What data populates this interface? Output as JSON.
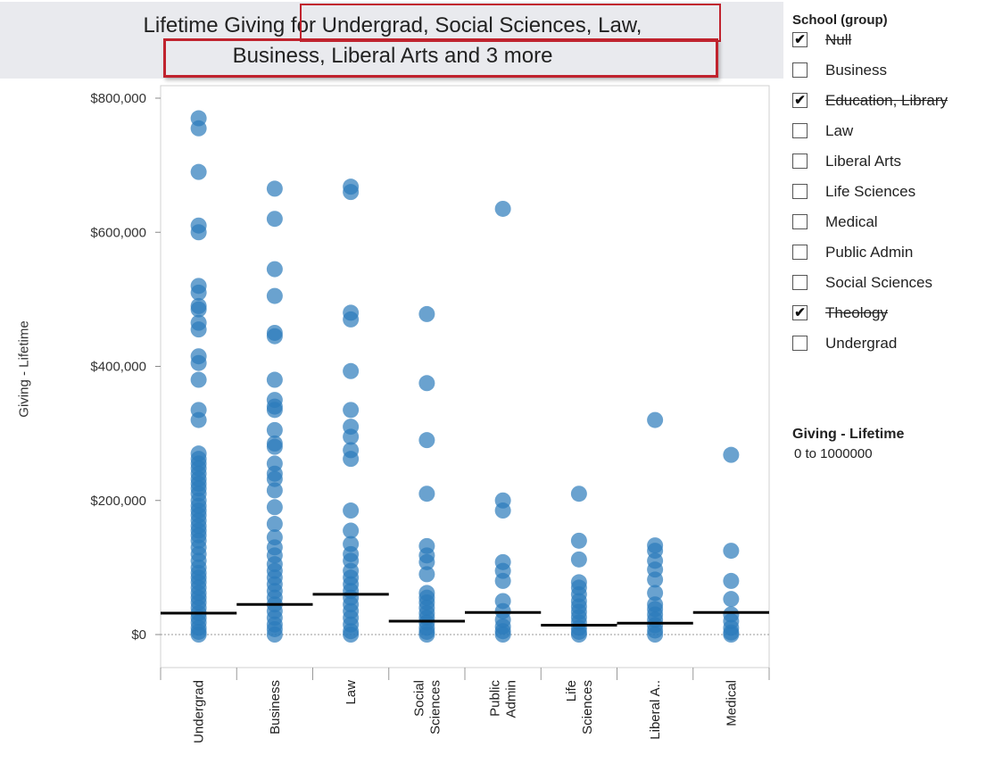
{
  "title_line1": "Lifetime Giving for Undergrad, Social Sciences, Law,",
  "title_line2": "Business, Liberal Arts and 3 more",
  "chart_data": {
    "type": "scatter",
    "title": "Lifetime Giving for Undergrad, Social Sciences, Law, Business, Liberal Arts and 3 more",
    "ylabel": "Giving - Lifetime",
    "ylim": [
      -50000,
      820000
    ],
    "y_ticks": [
      0,
      200000,
      400000,
      600000,
      800000
    ],
    "y_tick_labels": [
      "$0",
      "$200,000",
      "$400,000",
      "$600,000",
      "$800,000"
    ],
    "categories": [
      {
        "label": "Undergrad",
        "lines": [
          "Undergrad"
        ],
        "reference": 32000,
        "values": [
          770000,
          755000,
          690000,
          610000,
          600000,
          520000,
          510000,
          490000,
          485000,
          465000,
          455000,
          415000,
          405000,
          380000,
          335000,
          320000,
          270000,
          262000,
          255000,
          248000,
          240000,
          232000,
          225000,
          218000,
          210000,
          200000,
          192000,
          185000,
          178000,
          170000,
          162000,
          155000,
          148000,
          140000,
          130000,
          120000,
          110000,
          100000,
          92000,
          85000,
          78000,
          70000,
          62000,
          55000,
          48000,
          40000,
          32000,
          25000,
          18000,
          10000,
          4000,
          0
        ]
      },
      {
        "label": "Business",
        "lines": [
          "Business"
        ],
        "reference": 45000,
        "values": [
          665000,
          620000,
          545000,
          505000,
          450000,
          445000,
          380000,
          350000,
          340000,
          335000,
          305000,
          285000,
          280000,
          255000,
          240000,
          232000,
          215000,
          190000,
          165000,
          145000,
          130000,
          118000,
          105000,
          95000,
          85000,
          75000,
          65000,
          55000,
          45000,
          35000,
          25000,
          15000,
          8000,
          0
        ]
      },
      {
        "label": "Law",
        "lines": [
          "Law"
        ],
        "reference": 60000,
        "values": [
          668000,
          660000,
          480000,
          470000,
          393000,
          335000,
          310000,
          295000,
          275000,
          262000,
          185000,
          155000,
          135000,
          120000,
          110000,
          95000,
          85000,
          75000,
          65000,
          55000,
          45000,
          35000,
          25000,
          15000,
          5000,
          0
        ]
      },
      {
        "label": "Social Sciences",
        "lines": [
          "Social",
          "Sciences"
        ],
        "reference": 20000,
        "values": [
          478000,
          375000,
          290000,
          210000,
          132000,
          118000,
          108000,
          90000,
          62000,
          55000,
          48000,
          40000,
          32000,
          25000,
          18000,
          10000,
          4000,
          0
        ]
      },
      {
        "label": "Public Admin",
        "lines": [
          "Public",
          "Admin"
        ],
        "reference": 33000,
        "values": [
          635000,
          200000,
          185000,
          108000,
          95000,
          80000,
          50000,
          35000,
          22000,
          12000,
          5000,
          0
        ]
      },
      {
        "label": "Life Sciences",
        "lines": [
          "Life",
          "Sciences"
        ],
        "reference": 14000,
        "values": [
          210000,
          140000,
          112000,
          78000,
          70000,
          60000,
          50000,
          42000,
          34000,
          26000,
          18000,
          10000,
          4000,
          0
        ]
      },
      {
        "label": "Liberal A..",
        "lines": [
          "Liberal A.."
        ],
        "reference": 17000,
        "values": [
          320000,
          133000,
          125000,
          110000,
          97000,
          82000,
          62000,
          45000,
          38000,
          30000,
          22000,
          14000,
          6000,
          0
        ]
      },
      {
        "label": "Medical",
        "lines": [
          "Medical"
        ],
        "reference": 33000,
        "values": [
          268000,
          125000,
          80000,
          53000,
          30000,
          20000,
          10000,
          3000,
          0
        ]
      }
    ]
  },
  "legend": {
    "title": "School (group)",
    "items": [
      {
        "label": "Null",
        "checked": true
      },
      {
        "label": "Business",
        "checked": false
      },
      {
        "label": "Education, Library",
        "checked": true
      },
      {
        "label": "Law",
        "checked": false
      },
      {
        "label": "Liberal Arts",
        "checked": false
      },
      {
        "label": "Life Sciences",
        "checked": false
      },
      {
        "label": "Medical",
        "checked": false
      },
      {
        "label": "Public Admin",
        "checked": false
      },
      {
        "label": "Social Sciences",
        "checked": false
      },
      {
        "label": "Theology",
        "checked": true
      },
      {
        "label": "Undergrad",
        "checked": false
      }
    ]
  },
  "size_legend": {
    "title": "Giving - Lifetime",
    "range": "0 to 1000000"
  },
  "colors": {
    "marks": "#2b7bba",
    "reference_line": "#000000",
    "highlight": "#c0232e",
    "title_bg": "#e9eaee"
  }
}
